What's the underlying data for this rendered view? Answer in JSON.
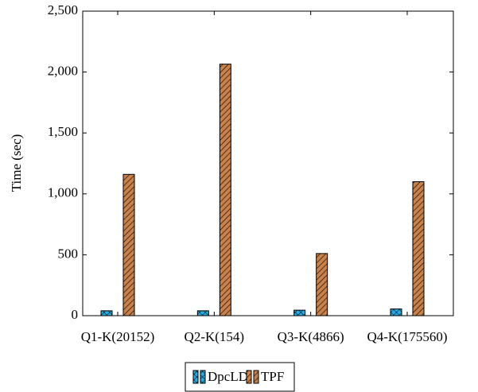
{
  "chart_data": {
    "type": "bar",
    "y_label": "Time (sec)",
    "categories": [
      "Q1-K(20152)",
      "Q2-K(154)",
      "Q3-K(4866)",
      "Q4-K(175560)"
    ],
    "series": [
      {
        "name": "DpcLD",
        "color": "#29abe2",
        "values": [
          40,
          40,
          45,
          55
        ]
      },
      {
        "name": "TPF",
        "color": "#c8814a",
        "values": [
          1160,
          2065,
          510,
          1100
        ]
      }
    ],
    "ylim": [
      0,
      2500
    ],
    "yticks": [
      0,
      500,
      {
        "value": 1000,
        "label": "1,000"
      },
      {
        "value": 1500,
        "label": "1,500"
      },
      {
        "value": 2000,
        "label": "2,000"
      },
      {
        "value": 2500,
        "label": "2,500"
      }
    ],
    "legend": "bottom"
  }
}
